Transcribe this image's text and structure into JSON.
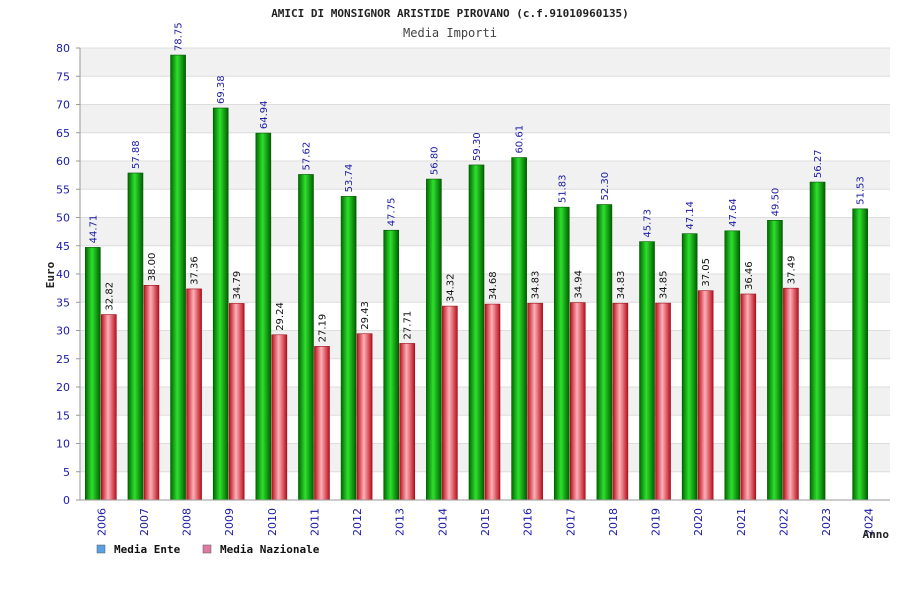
{
  "chart_data": {
    "type": "bar",
    "title": "AMICI DI MONSIGNOR ARISTIDE PIROVANO (c.f.91010960135)",
    "subtitle": "Media Importi",
    "xlabel": "Anno",
    "ylabel": "Euro",
    "ylim": [
      0,
      80
    ],
    "ytick_step": 5,
    "grid": true,
    "legend_position": "bottom-left",
    "categories": [
      "2006",
      "2007",
      "2008",
      "2009",
      "2010",
      "2011",
      "2012",
      "2013",
      "2014",
      "2015",
      "2016",
      "2017",
      "2018",
      "2019",
      "2020",
      "2021",
      "2022",
      "2023",
      "2024"
    ],
    "series": [
      {
        "name": "Media Ente",
        "color": "#00b000",
        "legend_color": "#5aa0e6",
        "values": [
          44.71,
          57.88,
          78.75,
          69.38,
          64.94,
          57.62,
          53.74,
          47.75,
          56.8,
          59.3,
          60.61,
          51.83,
          52.3,
          45.73,
          47.14,
          47.64,
          49.5,
          56.27,
          51.53
        ],
        "labels": [
          "44.71",
          "57.88",
          "78.75",
          "69.38",
          "64.94",
          "57.62",
          "53.74",
          "47.75",
          "56.80",
          "59.30",
          "60.61",
          "51.83",
          "52.30",
          "45.73",
          "47.14",
          "47.64",
          "49.50",
          "56.27",
          "51.53"
        ]
      },
      {
        "name": "Media Nazionale",
        "color": "#e83040",
        "legend_color": "#e07aa0",
        "values": [
          32.82,
          38.0,
          37.36,
          34.79,
          29.24,
          27.19,
          29.43,
          27.71,
          34.32,
          34.68,
          34.83,
          34.94,
          34.83,
          34.85,
          37.05,
          36.46,
          37.49,
          0,
          0
        ],
        "labels": [
          "32.82",
          "38.00",
          "37.36",
          "34.79",
          "29.24",
          "27.19",
          "29.43",
          "27.71",
          "34.32",
          "34.68",
          "34.83",
          "34.94",
          "34.83",
          "34.85",
          "37.05",
          "36.46",
          "37.49",
          "",
          ""
        ]
      }
    ]
  }
}
